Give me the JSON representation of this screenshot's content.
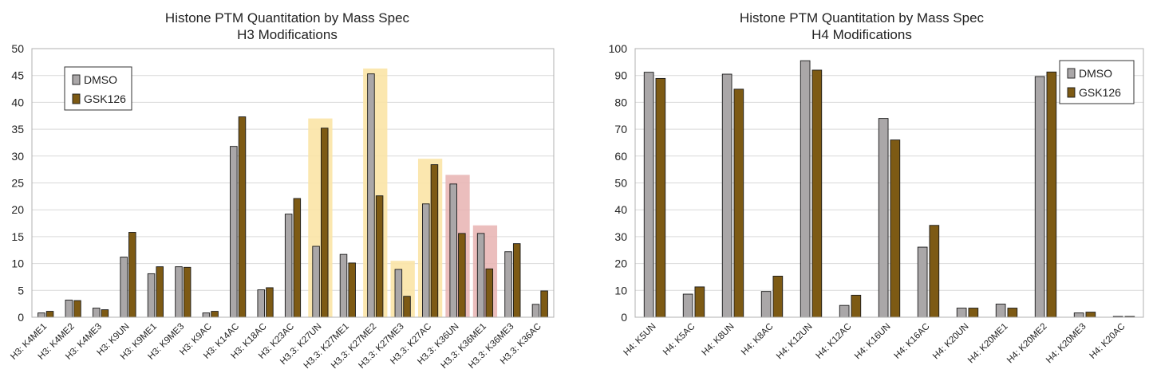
{
  "colors": {
    "dmso": "#aaa7a8",
    "gsk126": "#7d5a14",
    "gold_highlight": "#fbe4a6",
    "red_highlight": "#e8b3b1",
    "grid": "#d9d9d9",
    "border": "#b0b0b0"
  },
  "chart_data": [
    {
      "type": "bar",
      "title": "Histone PTM Quantitation by Mass Spec",
      "subtitle": "H3 Modifications",
      "xlabel": "",
      "ylabel": "",
      "ylim": [
        0,
        50
      ],
      "yticks": [
        "0",
        "5",
        "10",
        "15",
        "20",
        "25",
        "30",
        "35",
        "40",
        "45",
        "50"
      ],
      "grid": true,
      "legend": "top-left",
      "categories": [
        "H3: K4ME1",
        "H3: K4ME2",
        "H3: K4ME3",
        "H3: K9UN",
        "H3: K9ME1",
        "H3: K9ME3",
        "H3: K9AC",
        "H3: K14AC",
        "H3: K18AC",
        "H3: K23AC",
        "H3.3: K27UN",
        "H3.3: K27ME1",
        "H3.3: K27ME2",
        "H3.3: K27ME3",
        "H3.3: K27AC",
        "H3.3: K36UN",
        "H3.3: K36ME1",
        "H3.3: K36ME3",
        "H3.3: K36AC"
      ],
      "series": [
        {
          "name": "DMSO",
          "values": [
            0.8,
            3.2,
            1.7,
            11.2,
            8.1,
            9.4,
            0.8,
            31.8,
            5.1,
            19.2,
            13.2,
            11.7,
            45.3,
            8.9,
            21.1,
            24.8,
            15.6,
            12.2,
            2.4
          ]
        },
        {
          "name": "GSK126",
          "values": [
            1.1,
            3.1,
            1.4,
            15.8,
            9.4,
            9.3,
            1.1,
            37.3,
            5.5,
            22.1,
            35.2,
            10.1,
            22.6,
            3.9,
            28.4,
            15.6,
            9.0,
            13.7,
            4.9
          ]
        }
      ],
      "highlights": [
        {
          "category": "H3.3: K27UN",
          "color": "gold",
          "top": 37
        },
        {
          "category": "H3.3: K27ME2",
          "color": "gold",
          "top": 46.3
        },
        {
          "category": "H3.3: K27ME3",
          "color": "gold",
          "top": 10.5
        },
        {
          "category": "H3.3: K27AC",
          "color": "gold",
          "top": 29.5
        },
        {
          "category": "H3.3: K36UN",
          "color": "red",
          "top": 26.5
        },
        {
          "category": "H3.3: K36ME1",
          "color": "red",
          "top": 17.1
        }
      ]
    },
    {
      "type": "bar",
      "title": "Histone PTM Quantitation by Mass Spec",
      "subtitle": "H4 Modifications",
      "xlabel": "",
      "ylabel": "",
      "ylim": [
        0,
        100
      ],
      "yticks": [
        "0",
        "10",
        "20",
        "30",
        "40",
        "50",
        "60",
        "70",
        "80",
        "90",
        "100"
      ],
      "grid": true,
      "legend": "top-right",
      "categories": [
        "H4: K5UN",
        "H4: K5AC",
        "H4: K8UN",
        "H4: K8AC",
        "H4: K12UN",
        "H4: K12AC",
        "H4: K16UN",
        "H4: K16AC",
        "H4: K20UN",
        "H4: K20ME1",
        "H4: K20ME2",
        "H4: K20ME3",
        "H4: K20AC"
      ],
      "series": [
        {
          "name": "DMSO",
          "values": [
            91.2,
            8.6,
            90.5,
            9.6,
            95.5,
            4.4,
            74.0,
            26.1,
            3.4,
            4.9,
            89.6,
            1.6,
            0.3
          ]
        },
        {
          "name": "GSK126",
          "values": [
            88.9,
            11.3,
            84.9,
            15.3,
            92.0,
            8.2,
            66.0,
            34.2,
            3.4,
            3.4,
            91.3,
            1.9,
            0.3
          ]
        }
      ],
      "highlights": []
    }
  ]
}
